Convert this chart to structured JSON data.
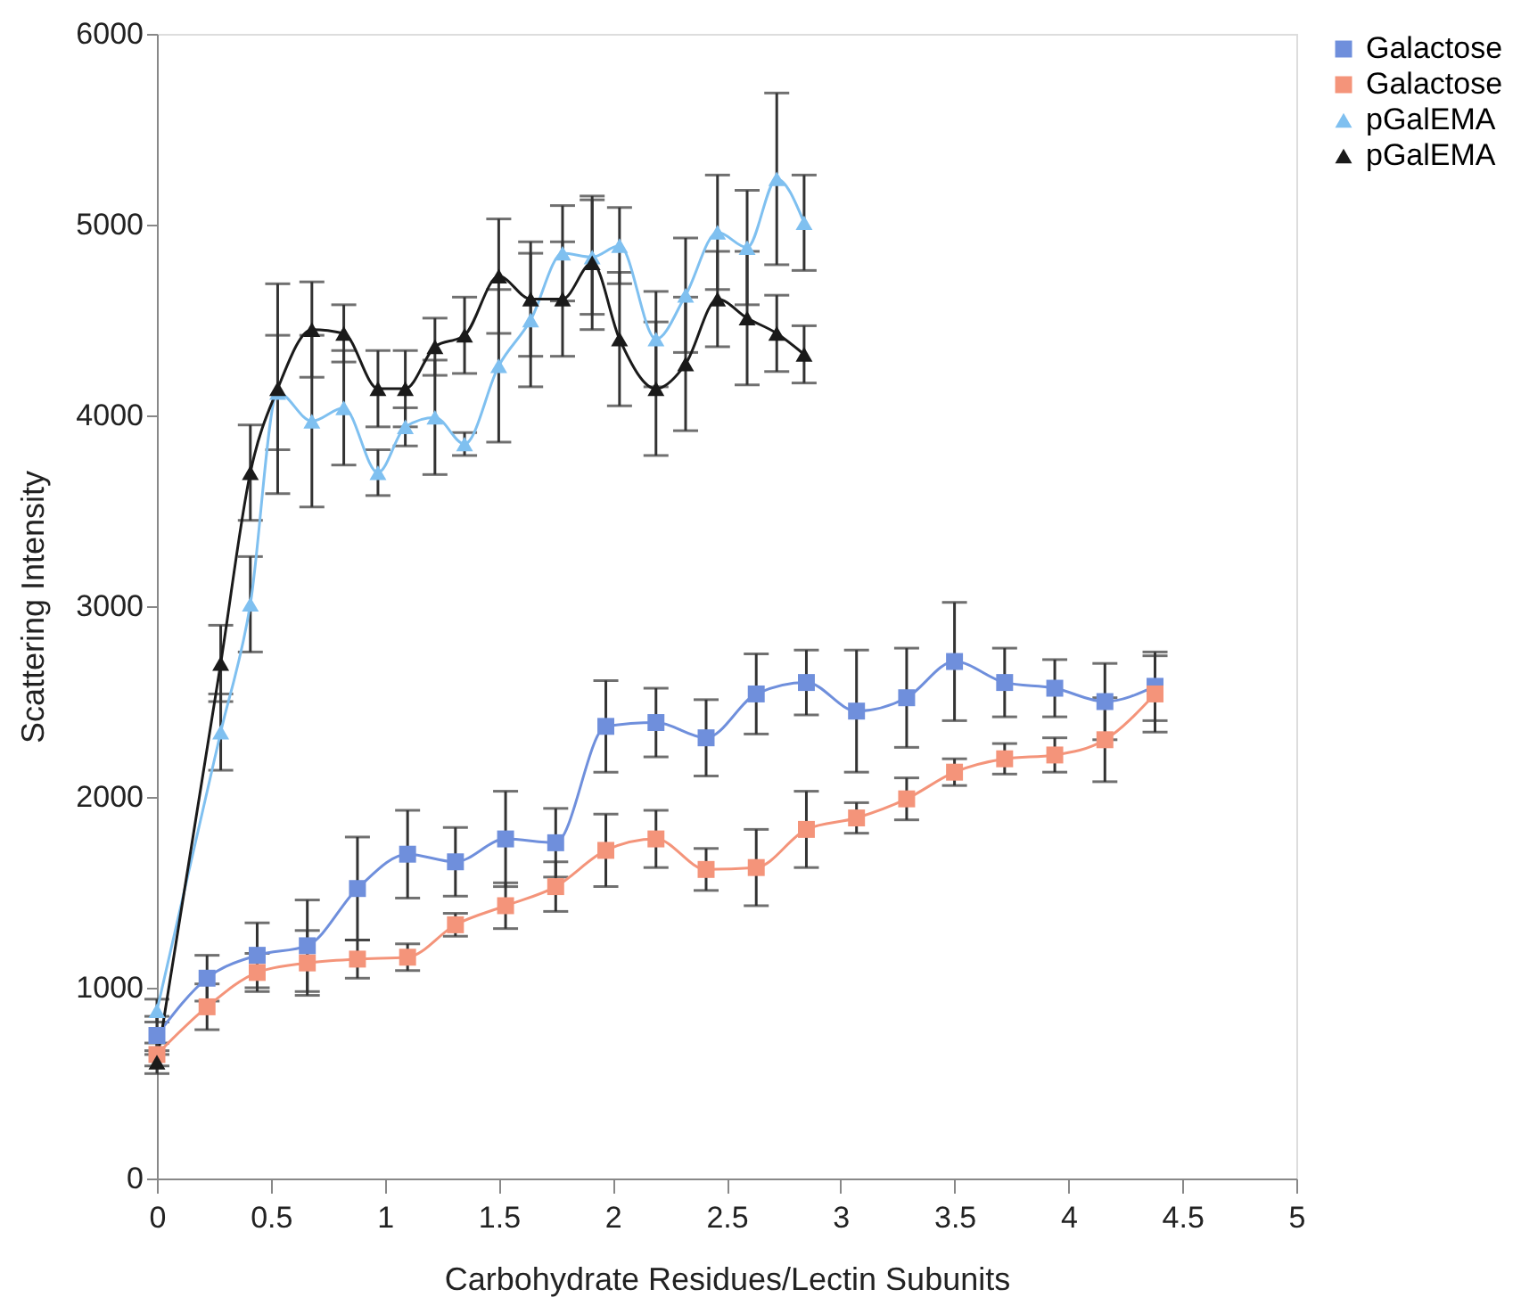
{
  "chart_data": {
    "type": "line",
    "xlabel": "Carbohydrate Residues/Lectin Subunits",
    "ylabel": "Scattering Intensity",
    "xlim": [
      0,
      5
    ],
    "xticks": [
      0,
      0.5,
      1,
      1.5,
      2,
      2.5,
      3,
      3.5,
      4,
      4.5,
      5
    ],
    "ylim": [
      0,
      6000
    ],
    "yticks": [
      0,
      1000,
      2000,
      3000,
      4000,
      5000,
      6000
    ],
    "grid": false,
    "legend": "right",
    "line_style": "solid",
    "series": [
      {
        "name": "Galactose",
        "color": "#6f8fdc",
        "marker": "square",
        "x": [
          0,
          0.22,
          0.44,
          0.66,
          0.88,
          1.1,
          1.31,
          1.53,
          1.75,
          1.97,
          2.19,
          2.41,
          2.63,
          2.85,
          3.07,
          3.29,
          3.5,
          3.72,
          3.94,
          4.16,
          4.38
        ],
        "values": [
          750,
          1050,
          1170,
          1220,
          1520,
          1700,
          1660,
          1780,
          1760,
          2370,
          2390,
          2310,
          2540,
          2600,
          2450,
          2520,
          2710,
          2600,
          2570,
          2500,
          2580
        ],
        "errors": [
          100,
          120,
          170,
          240,
          270,
          230,
          180,
          250,
          180,
          240,
          180,
          200,
          210,
          170,
          320,
          260,
          310,
          180,
          150,
          200,
          180
        ]
      },
      {
        "name": "Galactose",
        "color": "#f4947a",
        "marker": "square",
        "x": [
          0,
          0.22,
          0.44,
          0.66,
          0.88,
          1.1,
          1.31,
          1.53,
          1.75,
          1.97,
          2.19,
          2.41,
          2.63,
          2.85,
          3.07,
          3.29,
          3.5,
          3.72,
          3.94,
          4.16,
          4.38
        ],
        "values": [
          650,
          900,
          1080,
          1130,
          1150,
          1160,
          1330,
          1430,
          1530,
          1720,
          1780,
          1620,
          1630,
          1830,
          1890,
          1990,
          2130,
          2200,
          2220,
          2300,
          2540
        ],
        "errors": [
          60,
          120,
          100,
          170,
          100,
          70,
          60,
          120,
          130,
          190,
          150,
          110,
          200,
          200,
          80,
          110,
          70,
          80,
          90,
          220,
          200
        ]
      },
      {
        "name": "pGalEMA",
        "color": "#7fc0f0",
        "marker": "triangle",
        "x": [
          0,
          0.28,
          0.41,
          0.53,
          0.68,
          0.82,
          0.97,
          1.09,
          1.22,
          1.35,
          1.5,
          1.64,
          1.78,
          1.91,
          2.03,
          2.19,
          2.32,
          2.46,
          2.59,
          2.72,
          2.84
        ],
        "values": [
          880,
          2340,
          3010,
          4120,
          3970,
          4040,
          3700,
          3940,
          3990,
          3850,
          4260,
          4500,
          4850,
          4830,
          4890,
          4400,
          4630,
          4960,
          4880,
          5240,
          5010
        ],
        "errors": [
          60,
          200,
          250,
          300,
          450,
          300,
          120,
          100,
          300,
          60,
          400,
          350,
          250,
          300,
          200,
          250,
          300,
          300,
          300,
          450,
          250
        ]
      },
      {
        "name": "pGalEMA",
        "color": "#1a1a1a",
        "marker": "triangle",
        "x": [
          0,
          0.28,
          0.41,
          0.53,
          0.68,
          0.82,
          0.97,
          1.09,
          1.22,
          1.35,
          1.5,
          1.64,
          1.78,
          1.91,
          2.03,
          2.19,
          2.32,
          2.46,
          2.59,
          2.72,
          2.84
        ],
        "values": [
          610,
          2700,
          3700,
          4140,
          4450,
          4430,
          4140,
          4140,
          4360,
          4420,
          4730,
          4610,
          4610,
          4800,
          4400,
          4140,
          4270,
          4610,
          4510,
          4430,
          4320
        ],
        "errors": [
          60,
          200,
          250,
          550,
          250,
          150,
          200,
          200,
          150,
          200,
          300,
          300,
          300,
          350,
          350,
          350,
          350,
          250,
          350,
          200,
          150
        ]
      }
    ]
  }
}
